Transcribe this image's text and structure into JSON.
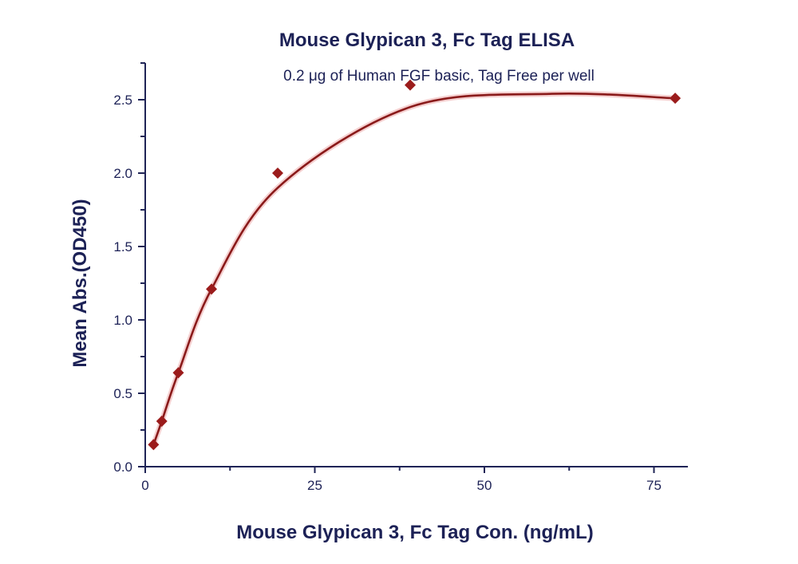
{
  "chart_data": {
    "type": "scatter",
    "title": "Mouse Glypican 3, Fc Tag ELISA",
    "subtitle": "0.2 μg of Human FGF basic, Tag Free per well",
    "xlabel": "Mouse Glypican 3, Fc Tag Con. (ng/mL)",
    "ylabel": "Mean Abs.(OD450)",
    "xlim": [
      0,
      80
    ],
    "ylim": [
      0,
      2.75
    ],
    "x_ticks": [
      "0",
      "25",
      "50",
      "75"
    ],
    "x_tick_values": [
      0,
      25,
      50,
      75
    ],
    "y_ticks": [
      "0.0",
      "0.5",
      "1.0",
      "1.5",
      "2.0",
      "2.5"
    ],
    "y_tick_values": [
      0,
      0.5,
      1.0,
      1.5,
      2.0,
      2.5
    ],
    "grid": false,
    "series": [
      {
        "x": [
          1.22,
          2.44,
          4.88,
          9.77,
          19.53,
          39.06,
          78.13
        ],
        "y": [
          0.15,
          0.31,
          0.64,
          1.21,
          2.0,
          2.6,
          2.51
        ],
        "marker": "diamond",
        "fit": "sigmoidal"
      }
    ],
    "colors": {
      "marker": "#9b1c1c",
      "curve": "#8a1a1a",
      "glow": "#f3c4c4",
      "axis": "#1f2456",
      "text": "#1c2156"
    }
  }
}
